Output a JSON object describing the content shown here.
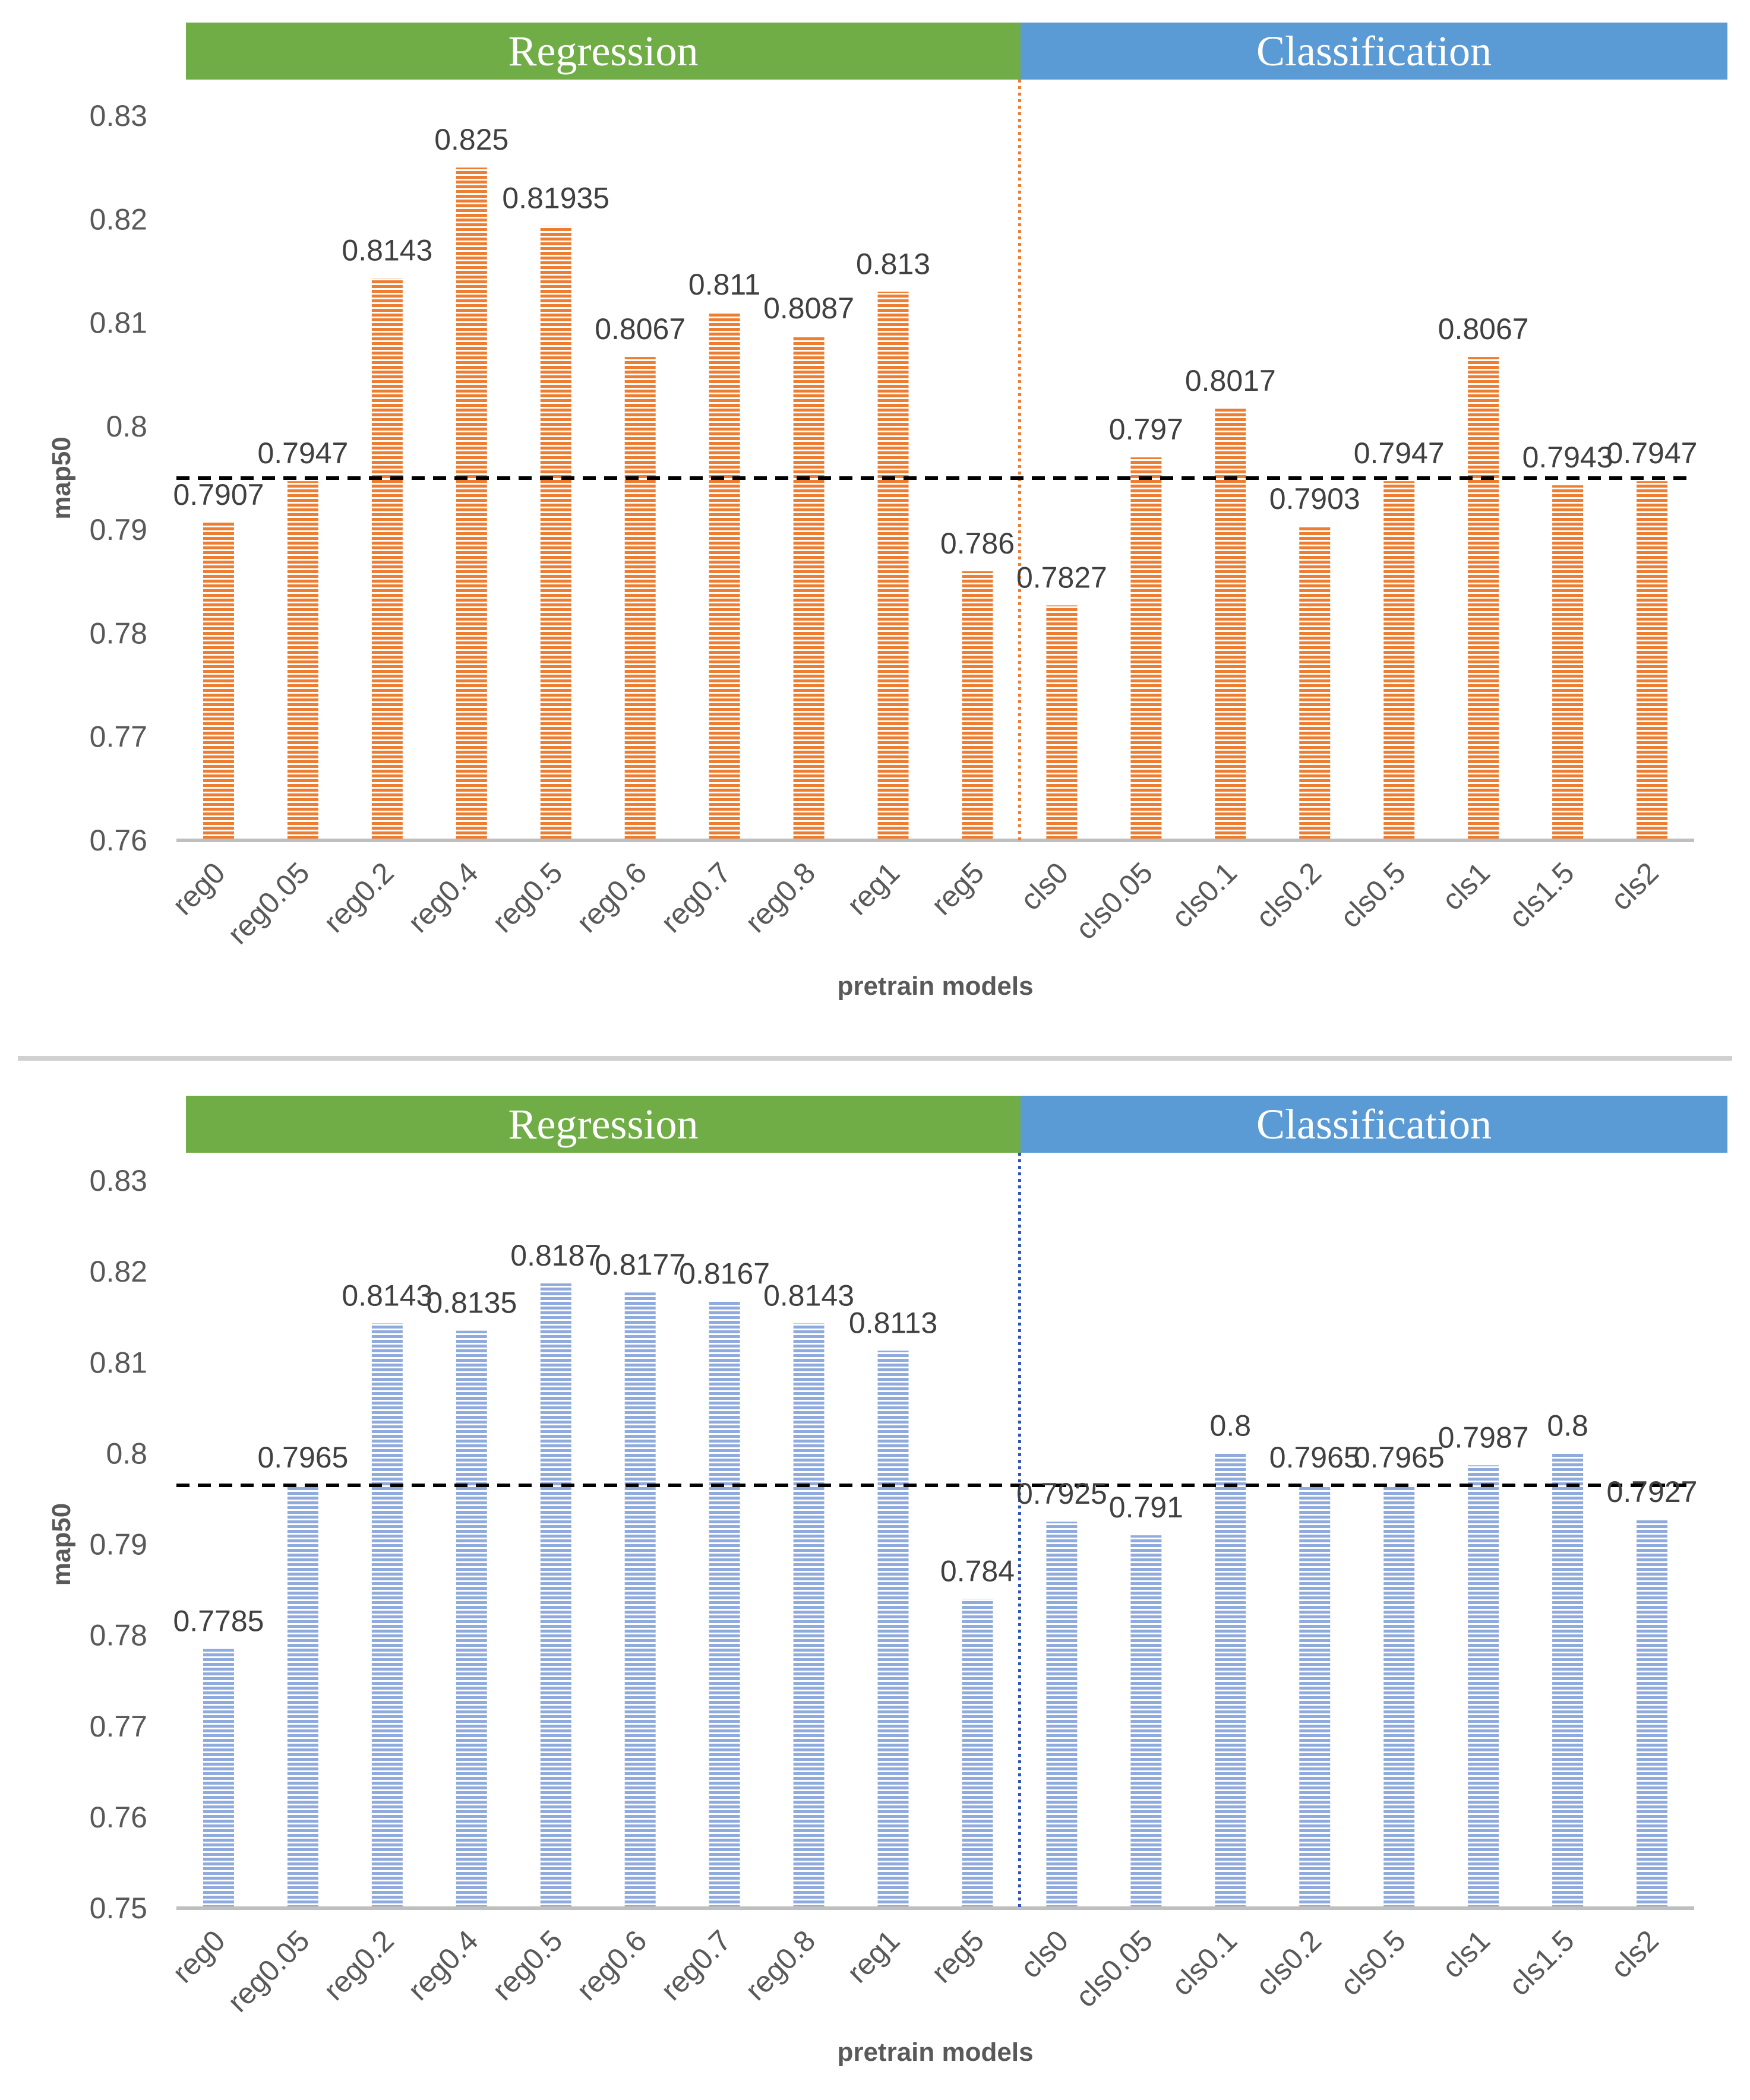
{
  "chart_data": [
    {
      "type": "bar",
      "headers": {
        "left": "Regression",
        "right": "Classification",
        "left_color": "#70ad47",
        "right_color": "#5b9bd5"
      },
      "categories": [
        "reg0",
        "reg0.05",
        "reg0.2",
        "reg0.4",
        "reg0.5",
        "reg0.6",
        "reg0.7",
        "reg0.8",
        "reg1",
        "reg5",
        "cls0",
        "cls0.05",
        "cls0.1",
        "cls0.2",
        "cls0.5",
        "cls1",
        "cls1.5",
        "cls2"
      ],
      "series": [
        {
          "values": [
            0.7907,
            0.7947,
            0.8143,
            0.825,
            0.81935,
            0.8067,
            0.811,
            0.8087,
            0.813,
            0.786,
            0.7827,
            0.797,
            0.8017,
            0.7903,
            0.7947,
            0.8067,
            0.7943,
            0.7947
          ]
        }
      ],
      "data_labels": [
        "0.7907",
        "0.7947",
        "0.8143",
        "0.825",
        "0.81935",
        "0.8067",
        "0.811",
        "0.8087",
        "0.813",
        "0.786",
        "0.7827",
        "0.797",
        "0.8017",
        "0.7903",
        "0.7947",
        "0.8067",
        "0.7943",
        "0.7947"
      ],
      "yticks": [
        "0.76",
        "0.77",
        "0.78",
        "0.79",
        "0.8",
        "0.81",
        "0.82",
        "0.83"
      ],
      "ylim": [
        0.76,
        0.83
      ],
      "reference_line": 0.795,
      "divider_after_index": 9,
      "xlabel": "pretrain models",
      "ylabel": "map50",
      "bar_color": "#ed7d31",
      "divider_color": "#ed7d31"
    },
    {
      "type": "bar",
      "headers": {
        "left": "Regression",
        "right": "Classification",
        "left_color": "#70ad47",
        "right_color": "#5b9bd5"
      },
      "categories": [
        "reg0",
        "reg0.05",
        "reg0.2",
        "reg0.4",
        "reg0.5",
        "reg0.6",
        "reg0.7",
        "reg0.8",
        "reg1",
        "reg5",
        "cls0",
        "cls0.05",
        "cls0.1",
        "cls0.2",
        "cls0.5",
        "cls1",
        "cls1.5",
        "cls2"
      ],
      "series": [
        {
          "values": [
            0.7785,
            0.7965,
            0.8143,
            0.8135,
            0.8187,
            0.8177,
            0.8167,
            0.8143,
            0.8113,
            0.784,
            0.7925,
            0.791,
            0.8,
            0.7965,
            0.7965,
            0.7987,
            0.8,
            0.7927
          ]
        }
      ],
      "data_labels": [
        "0.7785",
        "0.7965",
        "0.8143",
        "0.8135",
        "0.8187",
        "0.8177",
        "0.8167",
        "0.8143",
        "0.8113",
        "0.784",
        "0.7925",
        "0.791",
        "0.8",
        "0.7965",
        "0.7965",
        "0.7987",
        "0.8",
        "0.7927"
      ],
      "yticks": [
        "0.75",
        "0.76",
        "0.77",
        "0.78",
        "0.79",
        "0.8",
        "0.81",
        "0.82",
        "0.83"
      ],
      "ylim": [
        0.75,
        0.83
      ],
      "reference_line": 0.7965,
      "divider_after_index": 9,
      "xlabel": "pretrain models",
      "ylabel": "map50",
      "bar_color": "#8faadc",
      "divider_color": "#2f55b4"
    }
  ]
}
